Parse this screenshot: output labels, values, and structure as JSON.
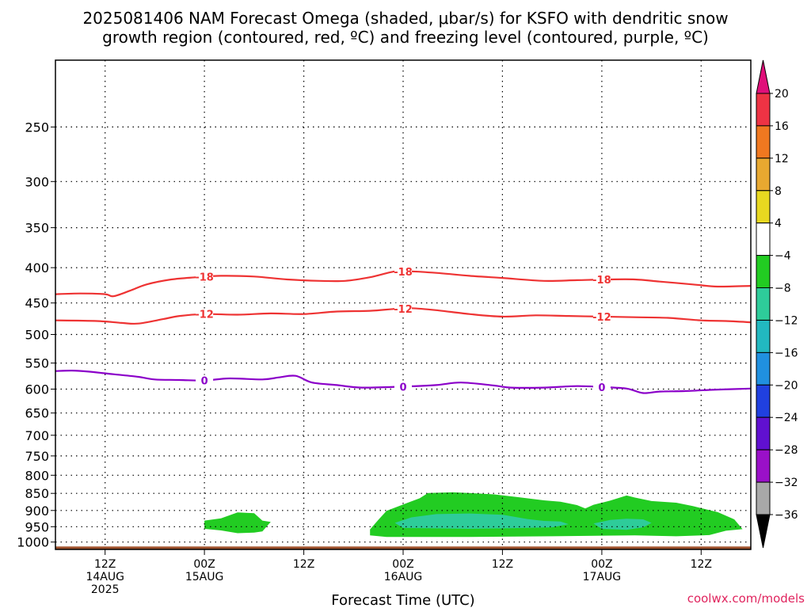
{
  "title_line1": "2025081406 NAM Forecast Omega (shaded, μbar/s) for KSFO with dendritic snow",
  "title_line2": "growth region (contoured, red, ºC) and freezing level (contoured, purple, ºC)",
  "credit": "coolwx.com/models",
  "chart_data": {
    "type": "time-height",
    "xlabel": "Forecast Time (UTC)",
    "ylabel": "",
    "x_ticks": [
      {
        "hours": 6,
        "lines": [
          "12Z",
          "14AUG",
          "2025"
        ]
      },
      {
        "hours": 18,
        "lines": [
          "00Z",
          "15AUG"
        ]
      },
      {
        "hours": 30,
        "lines": [
          "12Z"
        ]
      },
      {
        "hours": 42,
        "lines": [
          "00Z",
          "16AUG"
        ]
      },
      {
        "hours": 54,
        "lines": [
          "12Z"
        ]
      },
      {
        "hours": 66,
        "lines": [
          "00Z",
          "17AUG"
        ]
      },
      {
        "hours": 78,
        "lines": [
          "12Z"
        ]
      }
    ],
    "xlim_hours": [
      0,
      84
    ],
    "y_ticks": [
      "250",
      "300",
      "350",
      "400",
      "450",
      "500",
      "550",
      "600",
      "650",
      "700",
      "750",
      "800",
      "850",
      "900",
      "950",
      "1000"
    ],
    "ylim_hPa": [
      200,
      1025
    ],
    "y_scale": "log-pressure",
    "grid": "dotted",
    "ground": {
      "color": "#a0522d",
      "top_hPa": 1015
    },
    "contours": [
      {
        "label": "-18",
        "color": "#ee3333",
        "label_hours": [
          18,
          42,
          66
        ],
        "points": [
          [
            0,
            437
          ],
          [
            3,
            436
          ],
          [
            6,
            437
          ],
          [
            7,
            440
          ],
          [
            9,
            432
          ],
          [
            11,
            423
          ],
          [
            14,
            416
          ],
          [
            17,
            413
          ],
          [
            20,
            411
          ],
          [
            24,
            412
          ],
          [
            28,
            416
          ],
          [
            32,
            418
          ],
          [
            35,
            418
          ],
          [
            38,
            413
          ],
          [
            41,
            405
          ],
          [
            43,
            405
          ],
          [
            46,
            407
          ],
          [
            50,
            411
          ],
          [
            54,
            414
          ],
          [
            59,
            418
          ],
          [
            63,
            417
          ],
          [
            67,
            416
          ],
          [
            70,
            416
          ],
          [
            73,
            419
          ],
          [
            77,
            423
          ],
          [
            80,
            426
          ],
          [
            84,
            425
          ]
        ]
      },
      {
        "label": "-12",
        "color": "#ee3333",
        "label_hours": [
          18,
          42,
          66
        ],
        "points": [
          [
            0,
            477
          ],
          [
            5,
            478
          ],
          [
            8,
            481
          ],
          [
            10,
            482
          ],
          [
            13,
            475
          ],
          [
            15,
            470
          ],
          [
            18,
            467
          ],
          [
            22,
            468
          ],
          [
            26,
            466
          ],
          [
            30,
            467
          ],
          [
            34,
            463
          ],
          [
            38,
            462
          ],
          [
            41,
            459
          ],
          [
            43,
            458
          ],
          [
            46,
            461
          ],
          [
            50,
            467
          ],
          [
            54,
            471
          ],
          [
            58,
            469
          ],
          [
            62,
            470
          ],
          [
            66,
            471
          ],
          [
            70,
            472
          ],
          [
            74,
            473
          ],
          [
            78,
            477
          ],
          [
            81,
            478
          ],
          [
            84,
            480
          ]
        ]
      },
      {
        "label": "0",
        "color": "#8b00c9",
        "label_hours": [
          18,
          42,
          66
        ],
        "points": [
          [
            0,
            565
          ],
          [
            2,
            564
          ],
          [
            4,
            566
          ],
          [
            7,
            571
          ],
          [
            10,
            576
          ],
          [
            12,
            581
          ],
          [
            15,
            582
          ],
          [
            18,
            583
          ],
          [
            21,
            579
          ],
          [
            25,
            581
          ],
          [
            27,
            577
          ],
          [
            29,
            574
          ],
          [
            31,
            587
          ],
          [
            34,
            592
          ],
          [
            37,
            597
          ],
          [
            42,
            595
          ],
          [
            46,
            592
          ],
          [
            49,
            587
          ],
          [
            53,
            593
          ],
          [
            55,
            597
          ],
          [
            59,
            597
          ],
          [
            63,
            594
          ],
          [
            66,
            596
          ],
          [
            69,
            599
          ],
          [
            71,
            608
          ],
          [
            73,
            605
          ],
          [
            76,
            604
          ],
          [
            80,
            601
          ],
          [
            84,
            599
          ]
        ]
      }
    ],
    "omega_regions": [
      {
        "level": "-4 to -8",
        "color": "#22cc22",
        "points": [
          [
            18,
            931
          ],
          [
            20,
            924
          ],
          [
            22,
            906
          ],
          [
            24,
            908
          ],
          [
            25,
            931
          ],
          [
            26,
            935
          ],
          [
            25,
            965
          ],
          [
            24,
            969
          ],
          [
            22,
            971
          ],
          [
            20,
            962
          ],
          [
            18,
            957
          ]
        ]
      },
      {
        "level": "-4 to -8",
        "color": "#22cc22",
        "points": [
          [
            38,
            959
          ],
          [
            39,
            929
          ],
          [
            40,
            901
          ],
          [
            42,
            882
          ],
          [
            44,
            864
          ],
          [
            45,
            849
          ],
          [
            48,
            847
          ],
          [
            50,
            849
          ],
          [
            53,
            853
          ],
          [
            56,
            861
          ],
          [
            59,
            870
          ],
          [
            61,
            874
          ],
          [
            63,
            884
          ],
          [
            64,
            894
          ],
          [
            65,
            883
          ],
          [
            67,
            871
          ],
          [
            69,
            856
          ],
          [
            70,
            862
          ],
          [
            72,
            872
          ],
          [
            75,
            877
          ],
          [
            77,
            887
          ],
          [
            80,
            905
          ],
          [
            82,
            927
          ],
          [
            83,
            958
          ],
          [
            81,
            963
          ],
          [
            79,
            977
          ],
          [
            75,
            981
          ],
          [
            70,
            978
          ],
          [
            60,
            981
          ],
          [
            50,
            983
          ],
          [
            40,
            983
          ],
          [
            38,
            978
          ]
        ]
      },
      {
        "level": "-8 to -12",
        "color": "#2ecc9a",
        "points": [
          [
            41,
            938
          ],
          [
            43,
            921
          ],
          [
            46,
            911
          ],
          [
            50,
            909
          ],
          [
            54,
            913
          ],
          [
            57,
            926
          ],
          [
            59,
            932
          ],
          [
            61,
            934
          ],
          [
            62,
            942
          ],
          [
            60,
            952
          ],
          [
            55,
            955
          ],
          [
            50,
            957
          ],
          [
            45,
            955
          ],
          [
            42,
            954
          ]
        ]
      },
      {
        "level": "-8 to -12",
        "color": "#2ecc9a",
        "points": [
          [
            65,
            940
          ],
          [
            67,
            929
          ],
          [
            69,
            925
          ],
          [
            71,
            927
          ],
          [
            72,
            938
          ],
          [
            71,
            952
          ],
          [
            69,
            960
          ],
          [
            66,
            957
          ]
        ]
      }
    ]
  },
  "colorbar": {
    "labels": [
      "20",
      "16",
      "12",
      "8",
      "4",
      "−4",
      "−8",
      "−12",
      "−16",
      "−20",
      "−24",
      "−28",
      "−32",
      "−36"
    ],
    "colors": [
      "#ee3344",
      "#f07820",
      "#e8a830",
      "#e8d820",
      "#ffffff",
      "#22cc22",
      "#2ecc9a",
      "#22b8c0",
      "#2090e0",
      "#2040e0",
      "#6010d0",
      "#9a10c8",
      "#a8a8a8"
    ],
    "top_arrow_color": "#e0107a",
    "bottom_arrow_color": "#000000"
  }
}
